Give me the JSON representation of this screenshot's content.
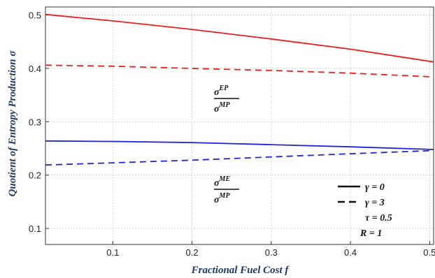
{
  "chart_data": {
    "type": "line",
    "title": "",
    "xlabel": "Fractional Fuel Cost f",
    "ylabel": "Quotient of Entropy Production σ",
    "xlim": [
      0.015,
      0.505
    ],
    "ylim": [
      0.07,
      0.515
    ],
    "x_ticks": [
      0.1,
      0.2,
      0.3,
      0.4,
      0.5
    ],
    "y_ticks": [
      0.1,
      0.2,
      0.3,
      0.4,
      0.5
    ],
    "x_tick_labels": [
      "0.1",
      "0.2",
      "0.3",
      "0.4",
      "0.5"
    ],
    "y_tick_labels": [
      "0.1",
      "0.2",
      "0.3",
      "0.4",
      "0.5"
    ],
    "grid": true,
    "series": [
      {
        "group": "EP",
        "style": "solid",
        "color": "#ee1c1c",
        "x": [
          0.015,
          0.1,
          0.2,
          0.3,
          0.4,
          0.505
        ],
        "y": [
          0.501,
          0.489,
          0.473,
          0.455,
          0.436,
          0.412
        ]
      },
      {
        "group": "EP",
        "style": "dashed",
        "color": "#ee1c1c",
        "x": [
          0.015,
          0.1,
          0.2,
          0.3,
          0.4,
          0.505
        ],
        "y": [
          0.406,
          0.404,
          0.4,
          0.396,
          0.391,
          0.384
        ]
      },
      {
        "group": "ME",
        "style": "solid",
        "color": "#2222dd",
        "x": [
          0.015,
          0.1,
          0.2,
          0.3,
          0.4,
          0.505
        ],
        "y": [
          0.264,
          0.263,
          0.261,
          0.257,
          0.253,
          0.248
        ]
      },
      {
        "group": "ME",
        "style": "dashed",
        "color": "#2222dd",
        "x": [
          0.015,
          0.1,
          0.2,
          0.3,
          0.4,
          0.505
        ],
        "y": [
          0.219,
          0.223,
          0.228,
          0.234,
          0.24,
          0.246
        ]
      }
    ],
    "annotations": [
      {
        "numerator": "σ",
        "numerator_sup": "EP",
        "denominator": "σ",
        "denominator_sup": "MP"
      },
      {
        "numerator": "σ",
        "numerator_sup": "ME",
        "denominator": "σ",
        "denominator_sup": "MP"
      }
    ],
    "legend": {
      "placement": "bottom-right",
      "entries": [
        {
          "label": "γ = 0",
          "style": "solid"
        },
        {
          "label": "γ = 3",
          "style": "dashed"
        }
      ],
      "notes": [
        "τ = 0.5",
        "R = 1"
      ]
    }
  }
}
